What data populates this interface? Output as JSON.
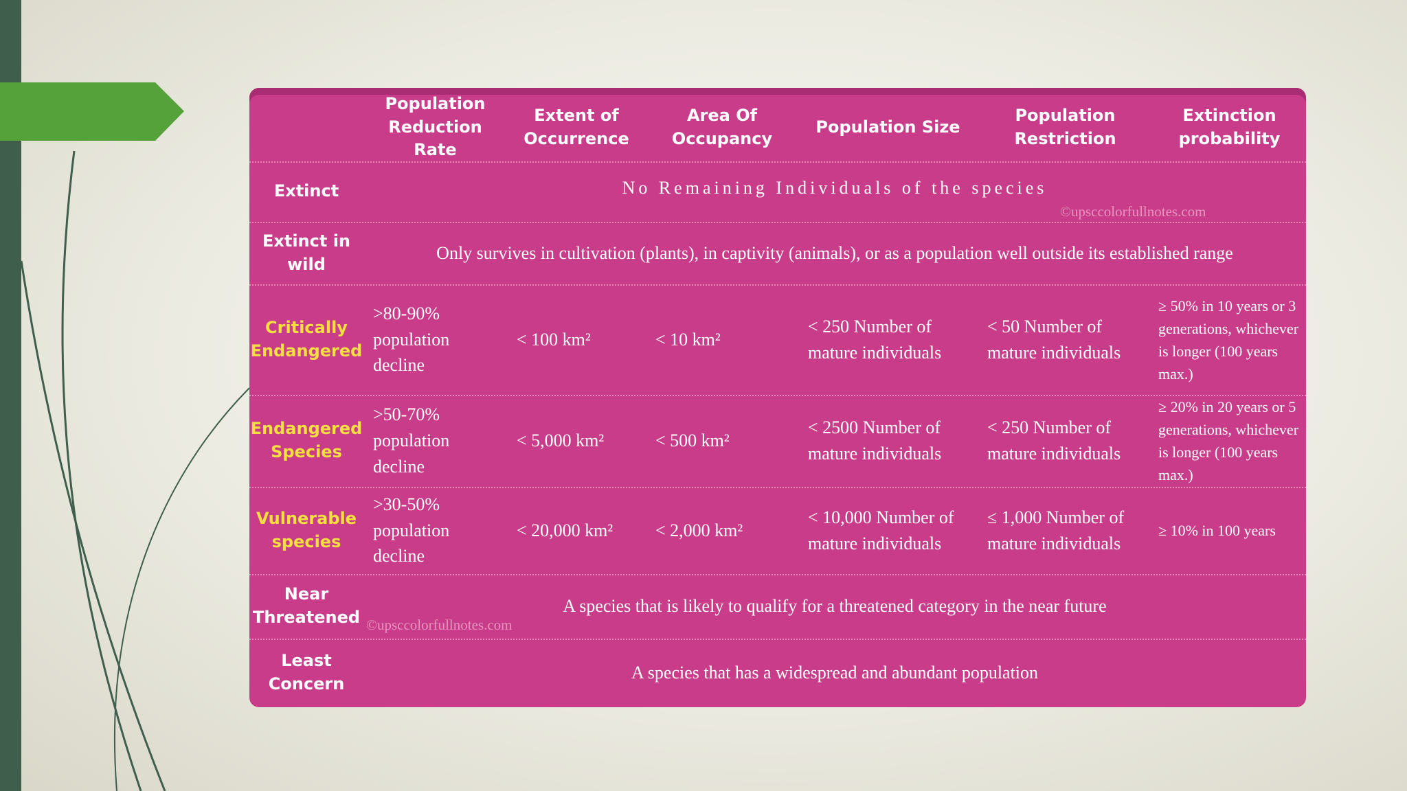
{
  "table": {
    "header": [
      "Population Reduction Rate",
      "Extent of Occurrence",
      "Area Of Occupancy",
      "Population Size",
      "Population Restriction",
      "Extinction probability"
    ],
    "rows": [
      {
        "label": "Extinct",
        "text": "No Remaining Individuals of the species"
      },
      {
        "label": "Extinct in wild",
        "text": "Only survives in cultivation (plants), in captivity (animals), or as a population well outside its established range"
      },
      {
        "label": "Critically Endangered",
        "label_color": "#f3e040",
        "cells": [
          ">80-90% population decline",
          "< 100 km²",
          "< 10 km²",
          "< 250 Number of mature individuals",
          "< 50 Number of mature individuals",
          "≥ 50% in 10 years or 3 generations, whichever is longer (100 years max.)"
        ]
      },
      {
        "label": "Endangered Species",
        "label_color": "#f3e040",
        "cells": [
          ">50-70% population decline",
          "< 5,000 km²",
          "< 500 km²",
          "< 2500 Number of mature individuals",
          "< 250 Number of mature individuals",
          "≥ 20% in 20 years or 5 generations, whichever is longer (100 years max.)"
        ]
      },
      {
        "label": "Vulnerable species",
        "label_color": "#f3e040",
        "cells": [
          ">30-50% population decline",
          "< 20,000 km²",
          "< 2,000 km²",
          "< 10,000 Number of mature individuals",
          "≤ 1,000 Number of mature individuals",
          "≥ 10% in 100 years"
        ]
      },
      {
        "label": "Near Threatened",
        "text": "A species that is likely to qualify for a threatened category in the near future"
      },
      {
        "label": "Least Concern",
        "text": "A species that has a widespread and abundant population"
      }
    ]
  },
  "watermarks": [
    "©upsccolorfullnotes.com",
    "©upsccolorfullnotes.com"
  ]
}
